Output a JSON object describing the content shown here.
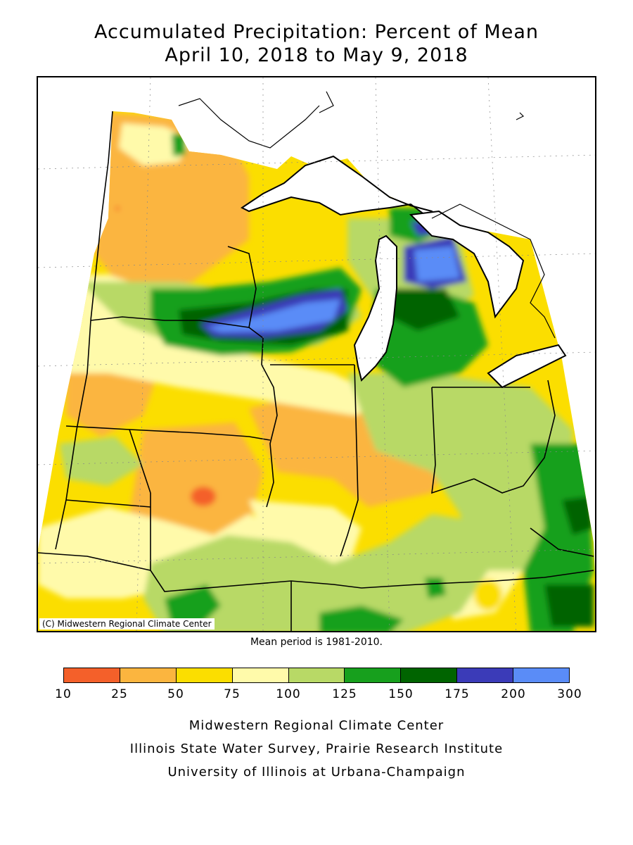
{
  "title": {
    "line1": "Accumulated Precipitation: Percent of Mean",
    "line2": "April 10, 2018 to May 9, 2018"
  },
  "map": {
    "copyright": "(C) Midwestern Regional Climate Center",
    "mean_period": "Mean period is 1981-2010."
  },
  "legend": {
    "colors": [
      "#f4602a",
      "#fbb53f",
      "#fbde00",
      "#fffaaa",
      "#b8d966",
      "#17a01d",
      "#006400",
      "#3b3bb8",
      "#5a8cf7"
    ],
    "tick_labels": [
      "10",
      "25",
      "50",
      "75",
      "100",
      "125",
      "150",
      "175",
      "200",
      "300"
    ]
  },
  "credits": {
    "line1": "Midwestern Regional Climate Center",
    "line2": "Illinois State Water Survey, Prairie Research Institute",
    "line3": "University of Illinois at Urbana-Champaign"
  }
}
